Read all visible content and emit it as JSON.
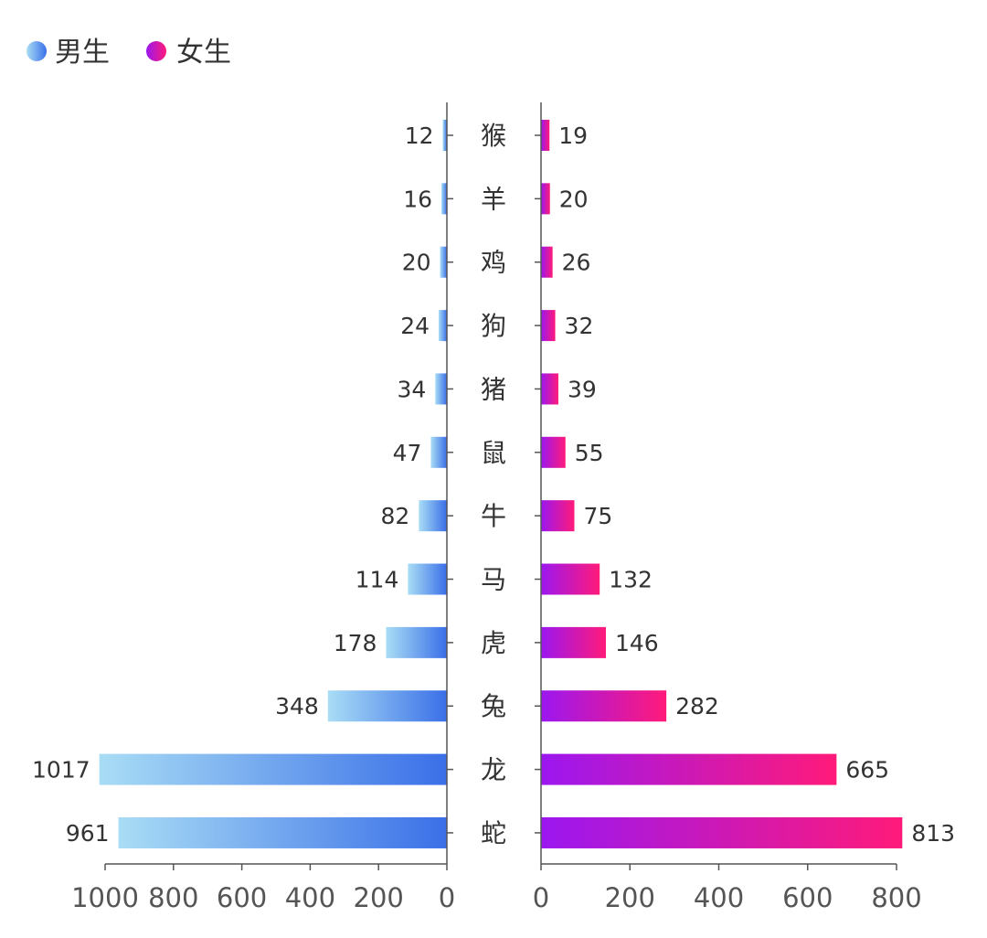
{
  "chart_data": {
    "type": "bar",
    "orientation": "horizontal",
    "layout": "butterfly",
    "categories": [
      "猴",
      "羊",
      "鸡",
      "狗",
      "猪",
      "鼠",
      "牛",
      "马",
      "虎",
      "兔",
      "龙",
      "蛇"
    ],
    "series": [
      {
        "name": "男生",
        "values": [
          12,
          16,
          20,
          24,
          34,
          47,
          82,
          114,
          178,
          348,
          1017,
          961
        ],
        "color_start": "#a9ddf5",
        "color_end": "#3a6fe8",
        "side": "left"
      },
      {
        "name": "女生",
        "values": [
          19,
          20,
          26,
          32,
          39,
          55,
          75,
          132,
          146,
          282,
          665,
          813
        ],
        "color_start": "#9b17f0",
        "color_end": "#ff1a7a",
        "side": "right"
      }
    ],
    "left_axis": {
      "range": [
        0,
        1000
      ],
      "ticks": [
        1000,
        800,
        600,
        400,
        200,
        0
      ]
    },
    "right_axis": {
      "range": [
        0,
        800
      ],
      "ticks": [
        0,
        200,
        400,
        600,
        800
      ]
    },
    "legend": {
      "position": "top-left",
      "items": [
        "男生",
        "女生"
      ]
    },
    "grid": false,
    "data_labels": true
  }
}
